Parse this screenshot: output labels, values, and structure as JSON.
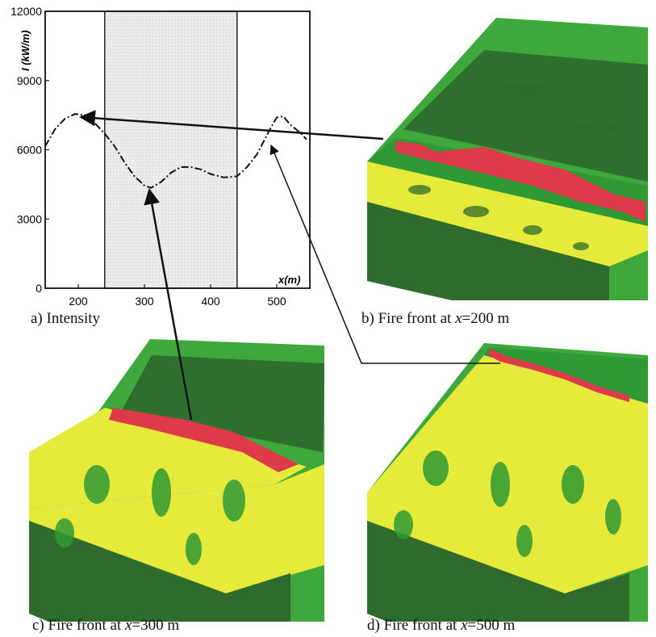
{
  "chart_data": {
    "type": "line",
    "xlabel": "x(m)",
    "ylabel": "I (kW/m)",
    "xlim": [
      150,
      550
    ],
    "ylim": [
      0,
      12000
    ],
    "xticks": [
      200,
      300,
      400,
      500
    ],
    "yticks": [
      0,
      3000,
      6000,
      9000,
      12000
    ],
    "shaded_region": [
      240,
      440
    ],
    "series": [
      {
        "style": "dash-dot",
        "x": [
          150,
          165,
          180,
          195,
          210,
          225,
          240,
          255,
          270,
          285,
          300,
          310,
          325,
          340,
          355,
          370,
          385,
          400,
          420,
          440,
          455,
          470,
          480,
          490,
          500,
          510,
          520,
          535,
          545
        ],
        "y": [
          6150,
          6900,
          7350,
          7550,
          7500,
          7150,
          6700,
          6150,
          5450,
          4850,
          4450,
          4350,
          4600,
          5000,
          5250,
          5250,
          5150,
          4950,
          4800,
          4850,
          5250,
          5800,
          6350,
          6900,
          7400,
          7450,
          7100,
          6750,
          6450
        ]
      }
    ]
  },
  "captions": {
    "a": "a) Intensity",
    "b_prefix": "b) Fire front at ",
    "b_var": "x",
    "b_suffix": "=200 m",
    "c_prefix": "c) Fire front at ",
    "c_var": "x",
    "c_suffix": "=300 m",
    "d_prefix": "d) Fire front at ",
    "d_var": "x",
    "d_suffix": "=500 m"
  },
  "colors": {
    "dark_green": "#2e6b2c",
    "mid_green": "#2f9a35",
    "light_green": "#3fa83c",
    "yellow": "#e6ea3a",
    "red": "#dd3a4a",
    "shade": "#e6e6e6"
  }
}
